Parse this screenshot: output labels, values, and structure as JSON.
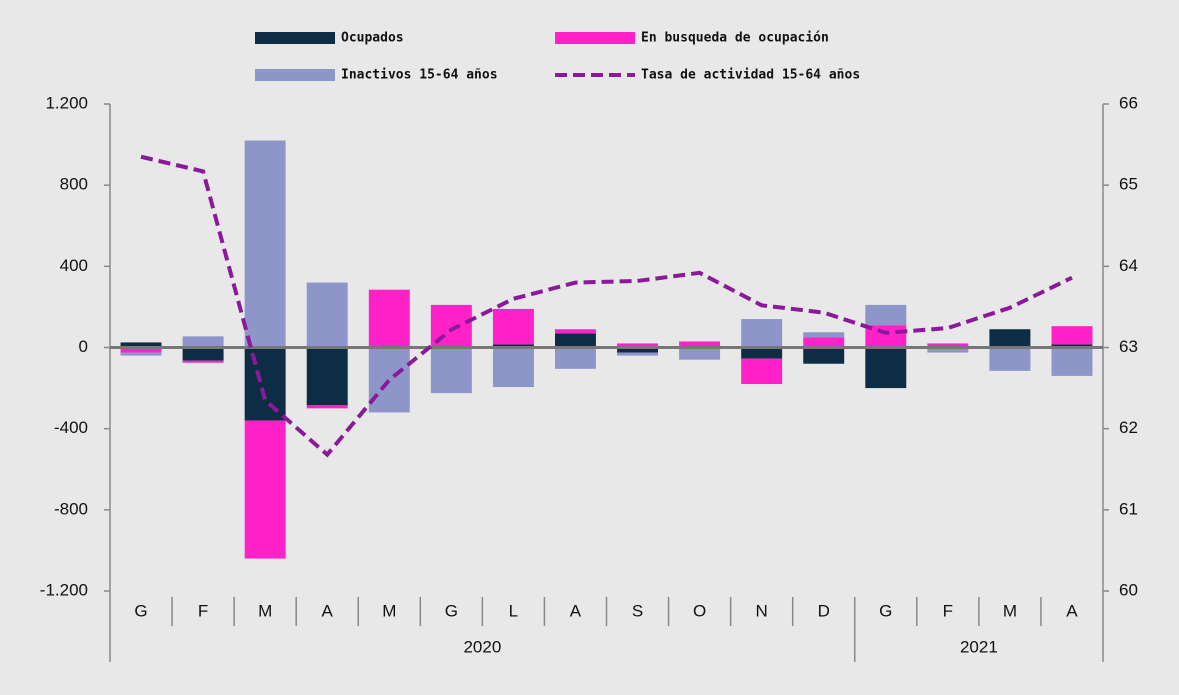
{
  "chart_data": {
    "type": "bar",
    "categories": [
      "G",
      "F",
      "M",
      "A",
      "M",
      "G",
      "L",
      "A",
      "S",
      "O",
      "N",
      "D",
      "G",
      "F",
      "M",
      "A"
    ],
    "x_groups": [
      {
        "label": "2020",
        "span": 12
      },
      {
        "label": "2021",
        "span": 4
      }
    ],
    "series": [
      {
        "name": "Ocupados",
        "color": "#0d2d45",
        "values": [
          25,
          -65,
          -360,
          -285,
          0,
          0,
          15,
          70,
          -25,
          5,
          -55,
          -80,
          -200,
          5,
          90,
          15
        ]
      },
      {
        "name": "En busqueda de ocupación",
        "color": "#ff22c8",
        "values": [
          -25,
          -10,
          -680,
          -15,
          285,
          210,
          175,
          20,
          20,
          25,
          -125,
          50,
          110,
          15,
          0,
          90
        ]
      },
      {
        "name": "Inactivos 15-64 años",
        "color": "#8e95c8",
        "values": [
          -15,
          55,
          1020,
          320,
          -320,
          -225,
          -195,
          -105,
          -15,
          -60,
          140,
          25,
          100,
          -25,
          -115,
          -140
        ]
      },
      {
        "name": "Tasa de actividad 15-64 años",
        "color": "#8b1a9a",
        "type": "line",
        "dashed": true,
        "axis": "y2",
        "values": [
          65.35,
          65.17,
          62.35,
          61.68,
          62.6,
          63.22,
          63.6,
          63.8,
          63.82,
          63.92,
          63.52,
          63.43,
          63.18,
          63.24,
          63.49,
          63.86
        ]
      }
    ],
    "ylim": [
      -1200,
      1200
    ],
    "yticks": [
      {
        "value": -1200,
        "label": "-1.200"
      },
      -800,
      -400,
      0,
      400,
      800,
      {
        "value": 1200,
        "label": "1.200"
      }
    ],
    "y2lim": [
      60,
      66
    ],
    "y2ticks": [
      60,
      61,
      62,
      63,
      64,
      65,
      66
    ],
    "grid": false,
    "legend": "top"
  }
}
